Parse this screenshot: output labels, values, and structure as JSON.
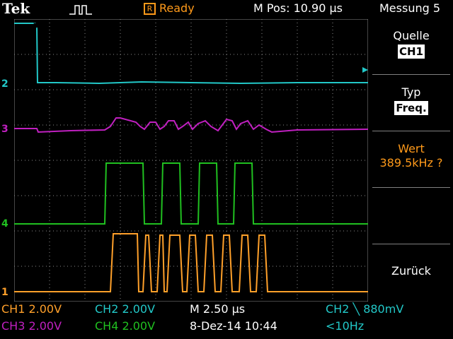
{
  "header": {
    "brand": "Tek",
    "trigger_icon": "pulse-trigger-icon",
    "state_icon_label": "R",
    "state": "Ready",
    "m_pos": "M Pos: 10.90 µs",
    "menu_title": "Messung 5"
  },
  "markers": {
    "ch1": "1",
    "ch2": "2",
    "ch3": "3",
    "ch4": "4"
  },
  "side_menu": {
    "source_label": "Quelle",
    "source_value": "CH1",
    "type_label": "Typ",
    "type_value": "Freq.",
    "value_label": "Wert",
    "value_value": "389.5kHz ?",
    "back_label": "Zurück"
  },
  "status": {
    "ch1": "CH1  2.00V",
    "ch2": "CH2  2.00V",
    "ch3": "CH3  2.00V",
    "ch4": "CH4  2.00V",
    "timebase": "M 2.50 µs",
    "date": "8-Dez-14 10:44",
    "trigger": "CH2 ╲ 880mV",
    "freq": "<10Hz"
  },
  "colors": {
    "ch1": "#ffa02a",
    "ch2": "#22c8c8",
    "ch3": "#c020c0",
    "ch4": "#20c020",
    "grid": "#8a8a8a"
  }
}
